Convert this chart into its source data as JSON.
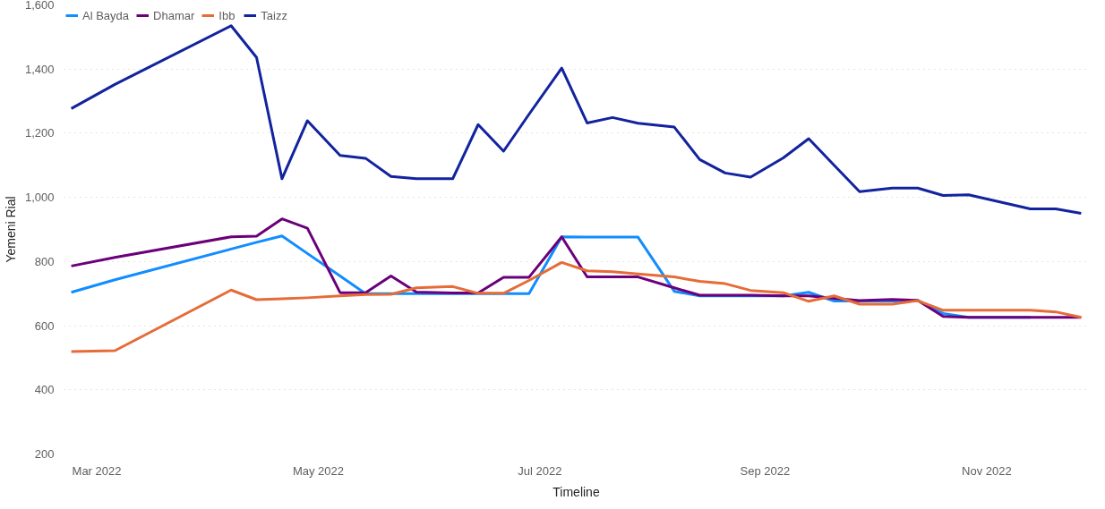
{
  "chart_data": {
    "type": "line",
    "xlabel": "Timeline",
    "ylabel": "Yemeni Rial",
    "x": [
      "2022-02-22",
      "2022-03-06",
      "2022-04-07",
      "2022-04-14",
      "2022-04-21",
      "2022-04-28",
      "2022-05-07",
      "2022-05-14",
      "2022-05-21",
      "2022-05-28",
      "2022-06-07",
      "2022-06-14",
      "2022-06-21",
      "2022-06-28",
      "2022-07-07",
      "2022-07-14",
      "2022-07-21",
      "2022-07-28",
      "2022-08-07",
      "2022-08-14",
      "2022-08-21",
      "2022-08-28",
      "2022-09-06",
      "2022-09-13",
      "2022-09-20",
      "2022-09-27",
      "2022-10-06",
      "2022-10-13",
      "2022-10-20",
      "2022-10-27",
      "2022-11-13",
      "2022-11-20",
      "2022-11-27"
    ],
    "series": [
      {
        "name": "Al Bayda",
        "color": "#118dff",
        "values": [
          704,
          743,
          839,
          860,
          880,
          825,
          755,
          700,
          700,
          700,
          700,
          700,
          700,
          700,
          877,
          876,
          876,
          876,
          707,
          693,
          693,
          693,
          693,
          704,
          677,
          677,
          677,
          679,
          638,
          626,
          626,
          null,
          null
        ]
      },
      {
        "name": "Dhamar",
        "color": "#6b007b",
        "values": [
          786,
          813,
          877,
          879,
          933,
          904,
          703,
          703,
          755,
          705,
          702,
          702,
          751,
          751,
          877,
          752,
          752,
          752,
          718,
          695,
          695,
          695,
          693,
          693,
          685,
          678,
          682,
          679,
          629,
          626,
          626,
          626,
          626
        ]
      },
      {
        "name": "Ibb",
        "color": "#e66c37",
        "values": [
          519,
          522,
          711,
          681,
          684,
          687,
          693,
          697,
          698,
          718,
          722,
          701,
          701,
          741,
          797,
          771,
          768,
          761,
          752,
          738,
          731,
          710,
          703,
          676,
          693,
          667,
          667,
          678,
          648,
          648,
          648,
          643,
          626
        ]
      },
      {
        "name": "Taizz",
        "color": "#12239e",
        "values": [
          1277,
          1352,
          1535,
          1436,
          1058,
          1239,
          1131,
          1122,
          1065,
          1058,
          1058,
          1227,
          1144,
          1259,
          1403,
          1232,
          1249,
          1231,
          1219,
          1118,
          1076,
          1063,
          1123,
          1183,
          1100,
          1018,
          1029,
          1029,
          1006,
          1008,
          964,
          964,
          950
        ]
      }
    ],
    "xlim": [
      "2022-02-20",
      "2022-11-29"
    ],
    "xticks": [
      {
        "value": "2022-03-01",
        "label": "Mar 2022"
      },
      {
        "value": "2022-05-01",
        "label": "May 2022"
      },
      {
        "value": "2022-07-01",
        "label": "Jul 2022"
      },
      {
        "value": "2022-09-01",
        "label": "Sep 2022"
      },
      {
        "value": "2022-11-01",
        "label": "Nov 2022"
      }
    ],
    "ylim": [
      200,
      1600
    ],
    "yticks": [
      {
        "value": 200,
        "label": "200"
      },
      {
        "value": 400,
        "label": "400"
      },
      {
        "value": 600,
        "label": "600"
      },
      {
        "value": 800,
        "label": "800"
      },
      {
        "value": 1000,
        "label": "1,000"
      },
      {
        "value": 1200,
        "label": "1,200"
      },
      {
        "value": 1400,
        "label": "1,400"
      },
      {
        "value": 1600,
        "label": "1,600"
      }
    ],
    "grid": "y",
    "legend": "top left",
    "marker": "none",
    "line_style": "solid"
  }
}
